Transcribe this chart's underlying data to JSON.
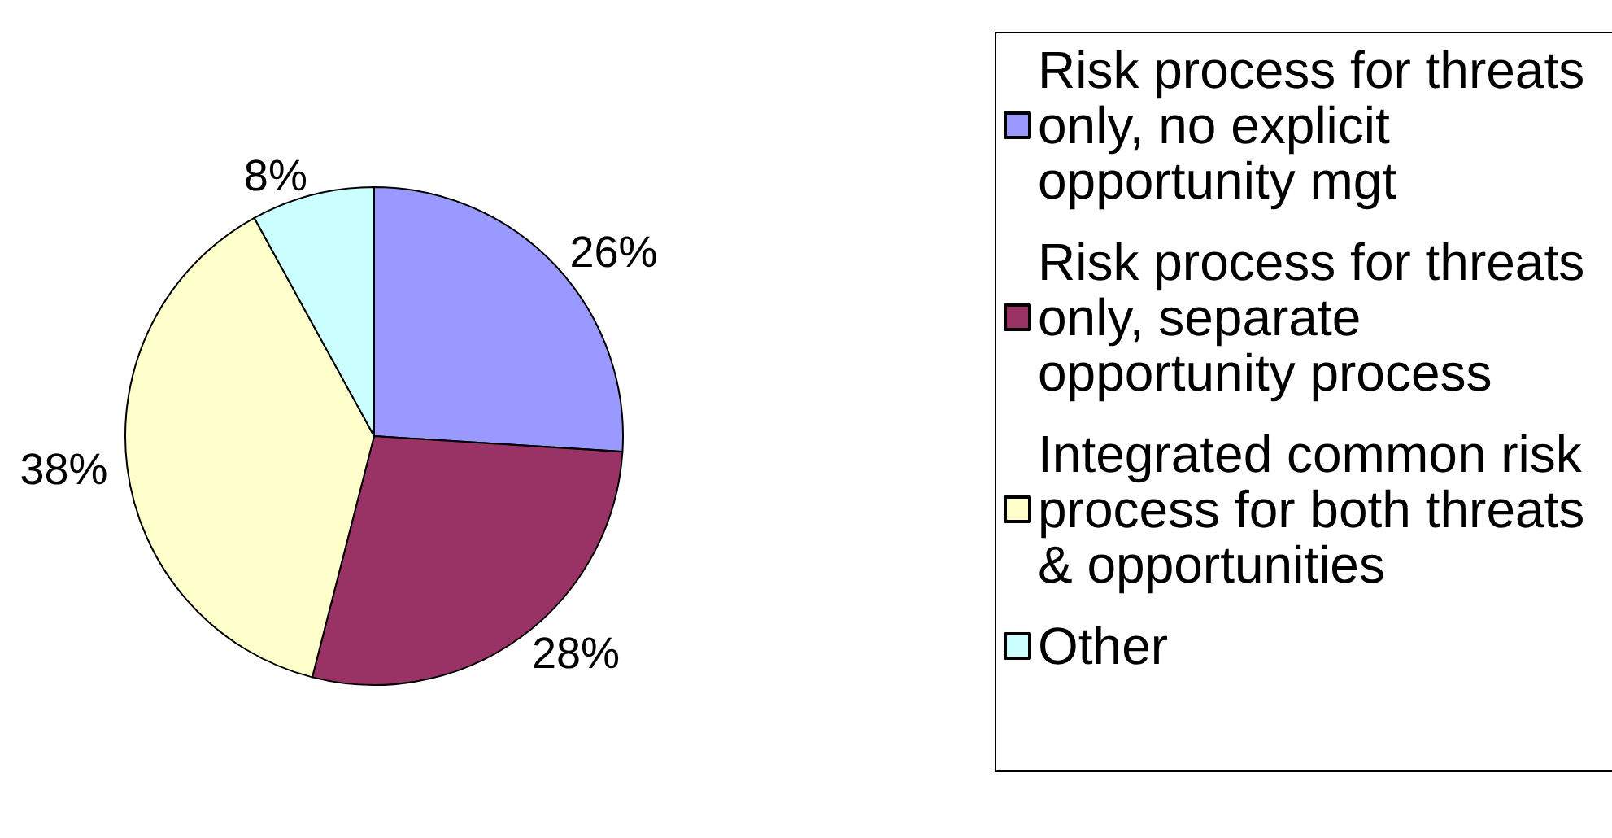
{
  "chart_data": {
    "type": "pie",
    "categories": [
      "Risk process for threats only, no explicit opportunity mgt",
      "Risk process for threats only, separate opportunity process",
      "Integrated common risk process for both threats & opportunities",
      "Other"
    ],
    "values": [
      26,
      28,
      38,
      8
    ],
    "colors": [
      "#9999ff",
      "#993366",
      "#ffffcc",
      "#ccffff"
    ],
    "value_labels": [
      "26%",
      "28%",
      "38%",
      "8%"
    ],
    "legend": "right"
  }
}
